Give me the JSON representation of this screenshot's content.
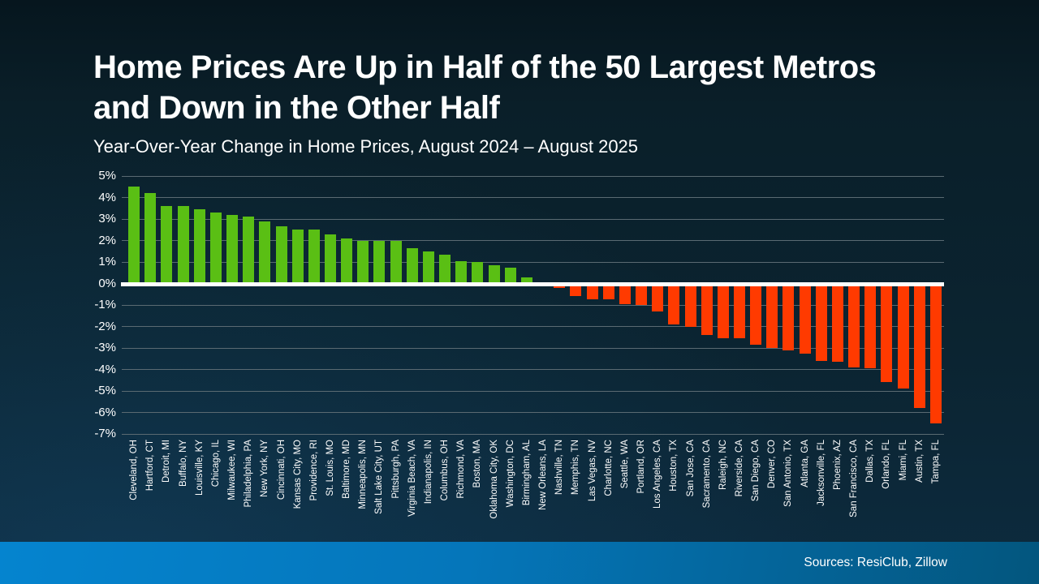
{
  "slide": {
    "title_line1": "Home Prices Are Up in Half of the 50 Largest Metros",
    "title_line2": "and Down in the Other Half",
    "subtitle": "Year-Over-Year Change in Home Prices, August 2024 – August 2025",
    "source_note": "Sources: ResiClub, Zillow"
  },
  "colors": {
    "positive_bar": "#5abf14",
    "negative_bar": "#ff3a00",
    "zero_line": "#ffffff",
    "gridline": "#5a6a72",
    "text": "#ffffff",
    "background_top": "#0a1f29",
    "background_bottom": "#0d2b3f",
    "footer_gradient_left": "#0584cf",
    "footer_gradient_right": "#03567e"
  },
  "chart_data": {
    "type": "bar",
    "title": "Home Prices Are Up in Half of the 50 Largest Metros and Down in the Other Half",
    "subtitle": "Year-Over-Year Change in Home Prices, August 2024 – August 2025",
    "xlabel": "",
    "ylabel": "",
    "ylim": [
      -7,
      5
    ],
    "yticks": [
      5,
      4,
      3,
      2,
      1,
      0,
      -1,
      -2,
      -3,
      -4,
      -5,
      -6,
      -7
    ],
    "ytick_suffix": "%",
    "grid": true,
    "legend": false,
    "categories": [
      "Cleveland, OH",
      "Hartford, CT",
      "Detroit, MI",
      "Buffalo, NY",
      "Louisville, KY",
      "Chicago, IL",
      "Milwaukee, WI",
      "Philadelphia, PA",
      "New York, NY",
      "Cincinnati, OH",
      "Kansas City, MO",
      "Providence, RI",
      "St. Louis, MO",
      "Baltimore, MD",
      "Minneapolis, MN",
      "Salt Lake City, UT",
      "Pittsburgh, PA",
      "Virginia Beach, VA",
      "Indianapolis, IN",
      "Columbus, OH",
      "Richmond, VA",
      "Boston, MA",
      "Oklahoma City, OK",
      "Washington, DC",
      "Birmingham, AL",
      "New Orleans, LA",
      "Nashville, TN",
      "Memphis, TN",
      "Las Vegas, NV",
      "Charlotte, NC",
      "Seattle, WA",
      "Portland, OR",
      "Los Angeles, CA",
      "Houston, TX",
      "San Jose, CA",
      "Sacramento, CA",
      "Raleigh, NC",
      "Riverside, CA",
      "San Diego, CA",
      "Denver, CO",
      "San Antonio, TX",
      "Atlanta, GA",
      "Jacksonville, FL",
      "Phoenix, AZ",
      "San Francisco, CA",
      "Dallas, TX",
      "Orlando, FL",
      "Miami, FL",
      "Austin, TX",
      "Tampa, FL"
    ],
    "values": [
      4.5,
      4.2,
      3.6,
      3.6,
      3.45,
      3.3,
      3.2,
      3.1,
      2.9,
      2.65,
      2.5,
      2.5,
      2.3,
      2.1,
      2.0,
      2.0,
      2.0,
      1.65,
      1.5,
      1.35,
      1.05,
      1.0,
      0.85,
      0.75,
      0.3,
      -0.1,
      -0.2,
      -0.6,
      -0.75,
      -0.75,
      -0.95,
      -1.0,
      -1.3,
      -1.9,
      -2.0,
      -2.4,
      -2.55,
      -2.55,
      -2.85,
      -3.0,
      -3.1,
      -3.25,
      -3.6,
      -3.65,
      -3.9,
      -3.95,
      -4.6,
      -4.9,
      -5.8,
      -6.5
    ]
  }
}
